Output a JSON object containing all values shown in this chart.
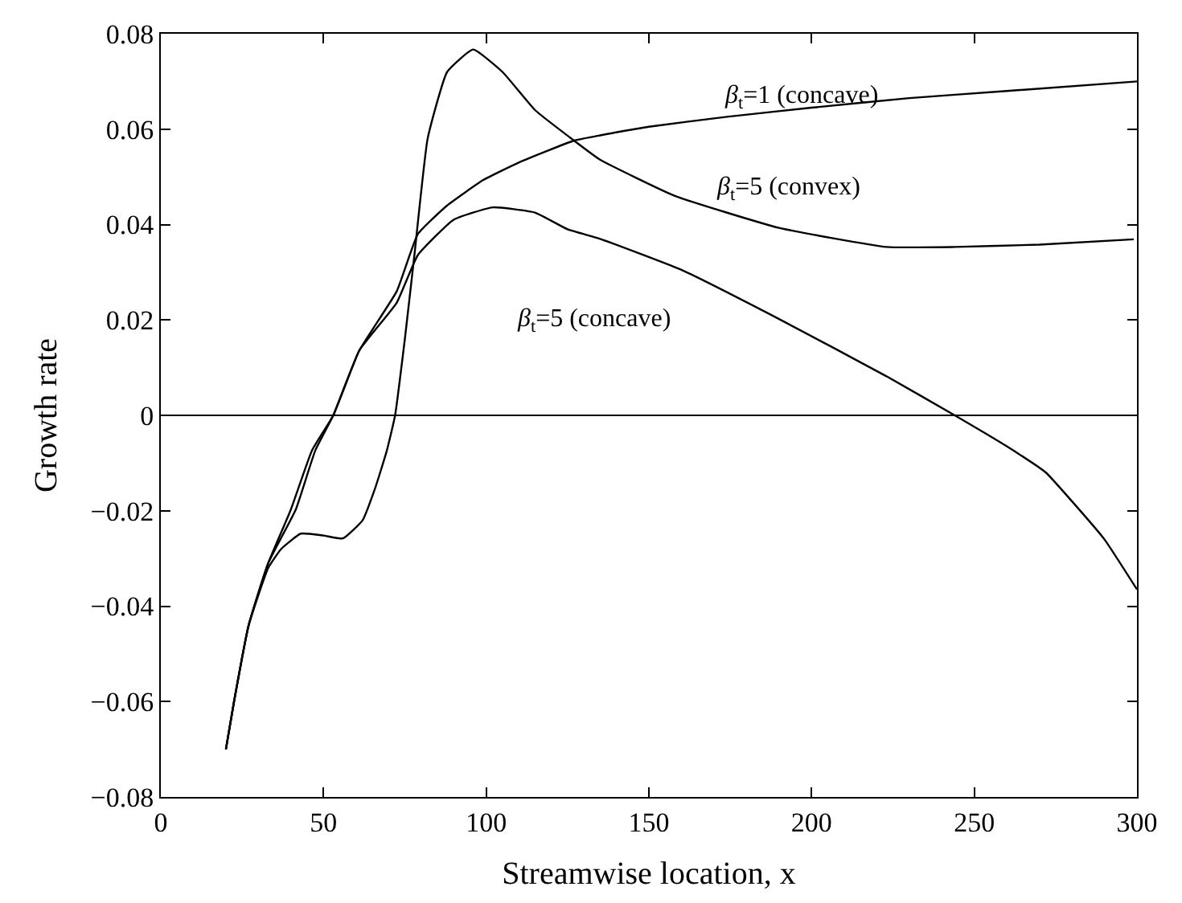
{
  "chart_data": {
    "type": "line",
    "xlabel": "Streamwise location, x",
    "ylabel": "Growth rate",
    "xlim": [
      0,
      300
    ],
    "ylim": [
      -0.08,
      0.08
    ],
    "xticks": [
      0,
      50,
      100,
      150,
      200,
      250,
      300
    ],
    "yticks": [
      -0.08,
      -0.06,
      -0.04,
      -0.02,
      0,
      0.02,
      0.04,
      0.06,
      0.08
    ],
    "grid": false,
    "legend": false,
    "marker": "none",
    "line_style": "solid",
    "ref_lines": [
      {
        "axis": "y",
        "value": 0,
        "color": "#000000"
      }
    ],
    "series": [
      {
        "name": "β$_{t}$=1 (concave)",
        "color": "#000000",
        "x": [
          20,
          22.5,
          27,
          33,
          40,
          46.5,
          53,
          61,
          72.5,
          79,
          88,
          99,
          110,
          127,
          135,
          150,
          174,
          200,
          230,
          260,
          300
        ],
        "values": [
          -0.07,
          -0.06,
          -0.044,
          -0.031,
          -0.0197,
          -0.0073,
          0.0,
          0.0136,
          0.026,
          0.038,
          0.044,
          0.0493,
          0.053,
          0.0576,
          0.0587,
          0.0605,
          0.0626,
          0.0645,
          0.0665,
          0.068,
          0.07
        ]
      },
      {
        "name": "β$_{t}$=5 (convex)",
        "color": "#000000",
        "x": [
          20,
          22.5,
          27,
          33,
          37,
          43,
          50,
          56,
          62,
          66,
          69.5,
          72,
          75,
          78,
          82,
          88,
          96,
          105,
          115,
          127,
          135,
          158,
          190,
          223,
          244,
          270,
          299
        ],
        "values": [
          -0.07,
          -0.06,
          -0.044,
          -0.032,
          -0.028,
          -0.0248,
          -0.0252,
          -0.0258,
          -0.022,
          -0.015,
          -0.0073,
          0.0,
          0.016,
          0.034,
          0.058,
          0.072,
          0.0767,
          0.072,
          0.064,
          0.0576,
          0.0536,
          0.046,
          0.0393,
          0.0353,
          0.0353,
          0.0358,
          0.0369
        ]
      },
      {
        "name": "β$_{t}$=5 (concave)",
        "color": "#000000",
        "x": [
          20,
          22.5,
          27,
          33,
          41.5,
          47.5,
          53,
          61,
          72.5,
          79,
          90,
          102,
          115,
          125,
          135,
          160,
          190,
          223,
          244,
          260,
          272,
          280,
          290,
          300
        ],
        "values": [
          -0.07,
          -0.06,
          -0.044,
          -0.031,
          -0.0197,
          -0.0073,
          0.0,
          0.0136,
          0.0236,
          0.0336,
          0.041,
          0.0436,
          0.0425,
          0.039,
          0.037,
          0.0305,
          0.0202,
          0.0082,
          0.0,
          -0.0065,
          -0.012,
          -0.018,
          -0.026,
          -0.0365
        ]
      }
    ]
  }
}
